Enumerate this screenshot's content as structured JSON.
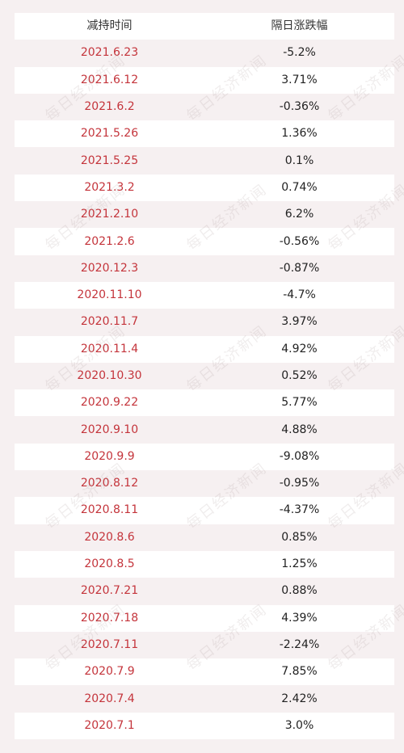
{
  "table": {
    "headers": [
      "减持时间",
      "隔日涨跌幅"
    ],
    "rows": [
      {
        "date": "2021.6.23",
        "change": "-5.2%"
      },
      {
        "date": "2021.6.12",
        "change": "3.71%"
      },
      {
        "date": "2021.6.2",
        "change": "-0.36%"
      },
      {
        "date": "2021.5.26",
        "change": "1.36%"
      },
      {
        "date": "2021.5.25",
        "change": "0.1%"
      },
      {
        "date": "2021.3.2",
        "change": "0.74%"
      },
      {
        "date": "2021.2.10",
        "change": "6.2%"
      },
      {
        "date": "2021.2.6",
        "change": "-0.56%"
      },
      {
        "date": "2020.12.3",
        "change": "-0.87%"
      },
      {
        "date": "2020.11.10",
        "change": "-4.7%"
      },
      {
        "date": "2020.11.7",
        "change": "3.97%"
      },
      {
        "date": "2020.11.4",
        "change": "4.92%"
      },
      {
        "date": "2020.10.30",
        "change": "0.52%"
      },
      {
        "date": "2020.9.22",
        "change": "5.77%"
      },
      {
        "date": "2020.9.10",
        "change": "4.88%"
      },
      {
        "date": "2020.9.9",
        "change": "-9.08%"
      },
      {
        "date": "2020.8.12",
        "change": "-0.95%"
      },
      {
        "date": "2020.8.11",
        "change": "-4.37%"
      },
      {
        "date": "2020.8.6",
        "change": "0.85%"
      },
      {
        "date": "2020.8.5",
        "change": "1.25%"
      },
      {
        "date": "2020.7.21",
        "change": "0.88%"
      },
      {
        "date": "2020.7.18",
        "change": "4.39%"
      },
      {
        "date": "2020.7.11",
        "change": "-2.24%"
      },
      {
        "date": "2020.7.9",
        "change": "7.85%"
      },
      {
        "date": "2020.7.4",
        "change": "2.42%"
      },
      {
        "date": "2020.7.1",
        "change": "3.0%"
      }
    ]
  },
  "watermark": "每日经济新闻",
  "colors": {
    "date_text": "#c4343b",
    "background": "#f6f0f1"
  }
}
